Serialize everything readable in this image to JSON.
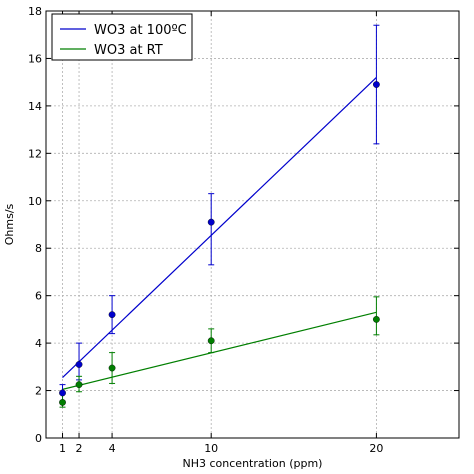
{
  "chart_data": {
    "type": "scatter",
    "title": "",
    "xlabel": "NH3 concentration (ppm)",
    "ylabel": "Ohms/s",
    "xlim": [
      0,
      25
    ],
    "ylim": [
      0,
      18
    ],
    "x_ticks": [
      1,
      2,
      4,
      10,
      20
    ],
    "y_ticks": [
      0,
      2,
      4,
      6,
      8,
      10,
      12,
      14,
      16,
      18
    ],
    "grid": true,
    "legend_position": "top-left",
    "series": [
      {
        "name": "WO3 at 100ºC",
        "color": "#0000cc",
        "x": [
          1,
          2,
          4,
          10,
          20
        ],
        "y": [
          1.9,
          3.1,
          5.2,
          9.1,
          14.9
        ],
        "yerr_low": [
          1.55,
          2.45,
          4.4,
          7.3,
          12.4
        ],
        "yerr_high": [
          2.25,
          4.0,
          6.0,
          10.3,
          17.4
        ],
        "fit": {
          "x": [
            1,
            20
          ],
          "y": [
            2.55,
            15.2
          ]
        }
      },
      {
        "name": "WO3 at RT",
        "color": "#007f00",
        "x": [
          1,
          2,
          4,
          10,
          20
        ],
        "y": [
          1.5,
          2.25,
          2.95,
          4.1,
          5.0
        ],
        "yerr_low": [
          1.3,
          1.95,
          2.3,
          3.6,
          4.35
        ],
        "yerr_high": [
          1.85,
          2.6,
          3.6,
          4.6,
          5.95
        ],
        "fit": {
          "x": [
            1,
            20
          ],
          "y": [
            2.05,
            5.3
          ]
        }
      }
    ]
  }
}
